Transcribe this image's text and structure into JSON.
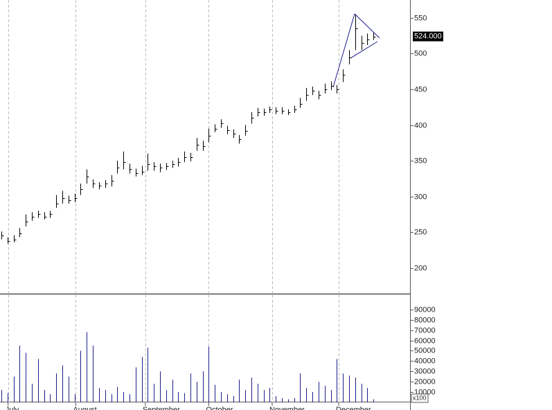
{
  "chart_data": [
    {
      "type": "hlc",
      "color": "#000000",
      "categories": [
        null,
        null,
        null,
        null,
        null,
        null,
        null,
        null,
        null,
        null,
        null,
        null,
        null,
        null,
        null,
        null,
        null,
        null,
        null,
        null,
        null,
        null,
        null,
        null,
        null,
        null,
        null,
        null,
        null,
        null,
        null,
        null,
        null,
        null,
        null,
        null,
        null,
        null,
        null,
        null,
        null,
        null,
        null,
        null,
        null,
        null,
        null,
        null,
        null,
        null,
        null,
        null,
        null,
        null,
        null,
        null,
        null,
        null,
        null,
        null,
        null,
        null
      ],
      "highs": [
        251,
        243,
        246,
        256,
        275,
        278,
        280,
        278,
        280,
        302,
        308,
        301,
        304,
        318,
        338,
        324,
        320,
        323,
        330,
        350,
        363,
        346,
        339,
        343,
        360,
        348,
        346,
        347,
        350,
        354,
        363,
        361,
        382,
        378,
        395,
        401,
        408,
        399,
        394,
        386,
        400,
        418,
        424,
        423,
        426,
        425,
        425,
        422,
        427,
        438,
        452,
        454,
        448,
        458,
        461,
        456,
        478,
        505,
        555,
        525,
        528,
        529
      ],
      "lows": [
        240,
        234,
        236,
        243,
        258,
        266,
        270,
        268,
        270,
        284,
        290,
        290,
        292,
        302,
        318,
        312,
        310,
        312,
        314,
        332,
        338,
        332,
        328,
        330,
        336,
        336,
        334,
        337,
        340,
        342,
        348,
        349,
        364,
        364,
        376,
        390,
        396,
        387,
        382,
        374,
        385,
        402,
        412,
        413,
        417,
        415,
        415,
        414,
        417,
        424,
        434,
        442,
        436,
        444,
        449,
        444,
        460,
        485,
        505,
        505,
        512,
        519
      ],
      "closes": [
        245,
        238,
        240,
        248,
        265,
        272,
        275,
        272,
        275,
        290,
        298,
        295,
        298,
        310,
        328,
        318,
        315,
        318,
        322,
        340,
        348,
        338,
        333,
        335,
        345,
        342,
        340,
        342,
        345,
        348,
        355,
        355,
        372,
        370,
        385,
        395,
        402,
        393,
        388,
        380,
        392,
        410,
        418,
        418,
        422,
        420,
        420,
        418,
        422,
        430,
        442,
        448,
        442,
        450,
        455,
        450,
        470,
        495,
        535,
        515,
        520,
        524
      ],
      "last_price": {
        "value": 524,
        "label": "524.000"
      },
      "xlim": [
        -0.23,
        67
      ],
      "ylim": [
        164,
        575
      ],
      "yticks": [
        200,
        250,
        300,
        350,
        400,
        450,
        500,
        550
      ]
    },
    {
      "type": "bar",
      "color": "#1c1c8c",
      "unit_label": "x100",
      "values": [
        12000,
        9000,
        25000,
        55000,
        48000,
        18000,
        42000,
        12000,
        8000,
        28000,
        36000,
        25000,
        8000,
        50000,
        68000,
        55000,
        14000,
        12000,
        8000,
        15000,
        10000,
        8000,
        34000,
        44000,
        53000,
        18000,
        30000,
        12000,
        22000,
        10000,
        9000,
        28000,
        20000,
        30000,
        54000,
        17000,
        10000,
        8000,
        6000,
        22000,
        12000,
        24000,
        18000,
        12000,
        14000,
        6000,
        4000,
        3000,
        4000,
        28000,
        14000,
        10000,
        20000,
        16000,
        12000,
        42000,
        28000,
        26000,
        24000,
        18000,
        14000,
        3000
      ],
      "xlim": [
        -0.23,
        67
      ],
      "ylim": [
        0,
        104000
      ],
      "yticks": [
        10000,
        20000,
        30000,
        40000,
        50000,
        60000,
        70000,
        80000,
        90000
      ],
      "xticks": [
        {
          "value": 1.1,
          "label": "July"
        },
        {
          "value": 12.2,
          "label": "August"
        },
        {
          "value": 23.6,
          "label": "September"
        },
        {
          "value": 34,
          "label": "October"
        },
        {
          "value": 44.4,
          "label": "November"
        },
        {
          "value": 55.3,
          "label": "December"
        }
      ]
    }
  ]
}
